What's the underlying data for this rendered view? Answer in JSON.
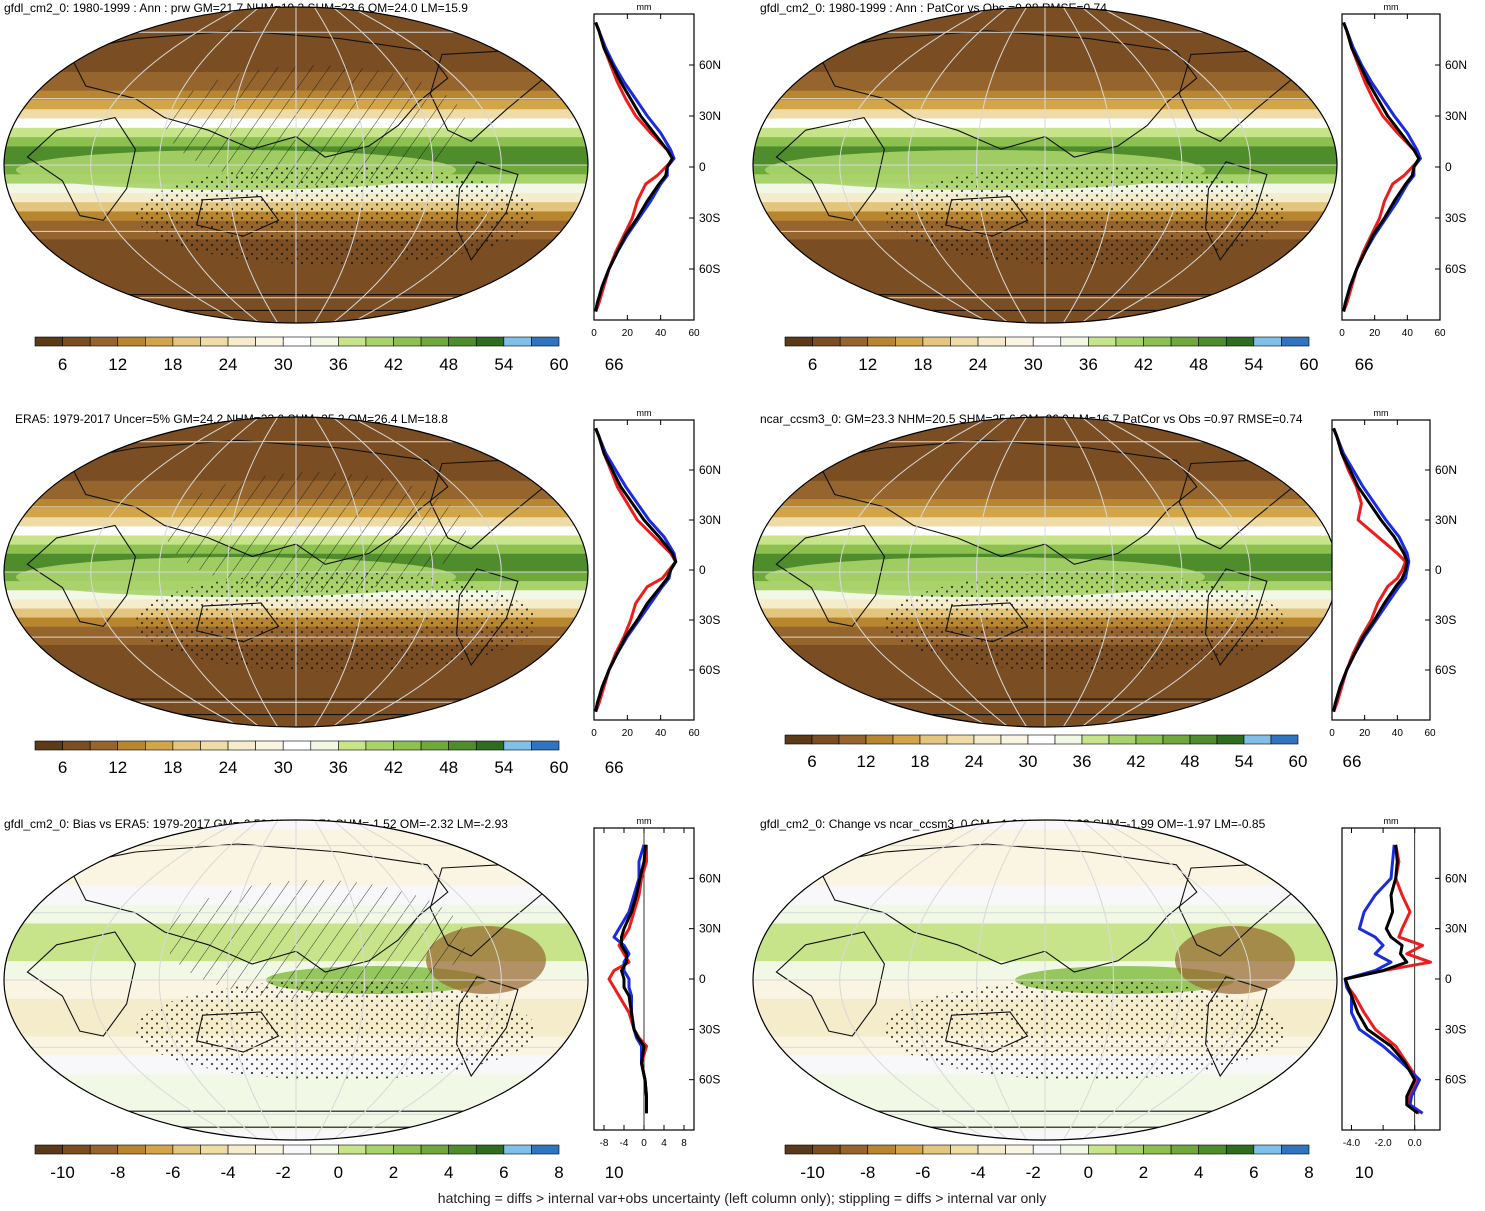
{
  "colors": {
    "mean_scale": [
      "#5c3a17",
      "#7a4e22",
      "#96652d",
      "#b8862f",
      "#d2a648",
      "#e3c57e",
      "#eedba6",
      "#f5eccb",
      "#faf5e2",
      "#ffffff",
      "#f2f8e6",
      "#c8e48a",
      "#a8d36a",
      "#8cc14f",
      "#6fa93c",
      "#4f8c2c",
      "#2e6d1f",
      "#7fbfe8",
      "#2f74c0"
    ],
    "diff_scale": [
      "#5c3a17",
      "#7a4e22",
      "#96652d",
      "#b8862f",
      "#d2a648",
      "#e3c57e",
      "#eedba6",
      "#f5eccb",
      "#faf5e2",
      "#f8f8fb",
      "#f2f8e6",
      "#c8e48a",
      "#a8d36a",
      "#8cc14f",
      "#6fa93c",
      "#4f8c2c",
      "#2e6d1f",
      "#7fbfe8",
      "#2f74c0"
    ],
    "line_red": "#ee1c1c",
    "line_blue": "#1a2be0",
    "line_black": "#000000"
  },
  "panels": [
    {
      "id": "gfdl-mean",
      "title": "gfdl_cm2_0: 1980-1999 : Ann : prw GM=21.7 NHM=19.3 SHM=23.6 OM=24.0 LM=15.9",
      "type": "mean",
      "colorbar_labels": [
        "6",
        "12",
        "18",
        "24",
        "30",
        "36",
        "42",
        "48",
        "54",
        "60",
        "66"
      ],
      "profile": {
        "units": "mm",
        "xlim": [
          0,
          60
        ],
        "xticks": [
          "0",
          "20",
          "40",
          "60"
        ],
        "lat_labels": [
          "60N",
          "30N",
          "0",
          "30S",
          "60S"
        ],
        "lat": [
          -85,
          -80,
          -70,
          -60,
          -50,
          -40,
          -30,
          -20,
          -10,
          -5,
          0,
          5,
          10,
          20,
          30,
          40,
          50,
          60,
          70,
          80,
          85
        ],
        "red": [
          1,
          3,
          6,
          9,
          13,
          18,
          23,
          26,
          31,
          38,
          43,
          48,
          44,
          34,
          25,
          19,
          14,
          10,
          6,
          3,
          1
        ],
        "blue": [
          1,
          2,
          5,
          9,
          14,
          20,
          27,
          34,
          40,
          44,
          44,
          48,
          46,
          40,
          32,
          25,
          18,
          12,
          7,
          3,
          1
        ],
        "black": [
          1,
          2,
          5,
          9,
          14,
          19,
          26,
          32,
          39,
          43,
          44,
          47,
          44,
          36,
          28,
          22,
          16,
          11,
          6,
          3,
          1
        ]
      }
    },
    {
      "id": "gfdl-patcor",
      "title": "gfdl_cm2_0: 1980-1999 : Ann : PatCor vs Obs =0.98 RMSE=0.74",
      "type": "mean",
      "colorbar_labels": [
        "6",
        "12",
        "18",
        "24",
        "30",
        "36",
        "42",
        "48",
        "54",
        "60",
        "66"
      ],
      "profile": {
        "units": "mm",
        "xlim": [
          0,
          60
        ],
        "xticks": [
          "0",
          "20",
          "40",
          "60"
        ],
        "lat_labels": [
          "60N",
          "30N",
          "0",
          "30S",
          "60S"
        ],
        "lat": [
          -85,
          -80,
          -70,
          -60,
          -50,
          -40,
          -30,
          -20,
          -10,
          -5,
          0,
          5,
          10,
          20,
          30,
          40,
          50,
          60,
          70,
          80,
          85
        ],
        "red": [
          1,
          3,
          6,
          9,
          13,
          18,
          23,
          26,
          31,
          38,
          43,
          48,
          44,
          34,
          25,
          19,
          14,
          10,
          6,
          3,
          1
        ],
        "blue": [
          1,
          2,
          5,
          9,
          14,
          20,
          27,
          34,
          40,
          44,
          44,
          48,
          46,
          40,
          32,
          25,
          18,
          12,
          7,
          3,
          1
        ],
        "black": [
          1,
          2,
          5,
          9,
          14,
          19,
          26,
          32,
          39,
          43,
          44,
          47,
          44,
          36,
          28,
          22,
          16,
          11,
          6,
          3,
          1
        ]
      }
    },
    {
      "id": "era5-mean",
      "title": "ERA5: 1979-2017 Uncer=5% GM=24.2 NHM=23.0 SHM=25.2 OM=26.4 LM=18.8",
      "type": "mean",
      "colorbar_labels": [
        "6",
        "12",
        "18",
        "24",
        "30",
        "36",
        "42",
        "48",
        "54",
        "60",
        "66"
      ],
      "profile": {
        "units": "mm",
        "xlim": [
          0,
          60
        ],
        "xticks": [
          "0",
          "20",
          "40",
          "60"
        ],
        "lat_labels": [
          "60N",
          "30N",
          "0",
          "30S",
          "60S"
        ],
        "lat": [
          -85,
          -80,
          -70,
          -60,
          -50,
          -40,
          -30,
          -20,
          -10,
          -5,
          0,
          5,
          10,
          20,
          30,
          40,
          50,
          60,
          70,
          80,
          85
        ],
        "red": [
          1,
          3,
          6,
          9,
          13,
          18,
          22,
          25,
          32,
          41,
          45,
          49,
          46,
          36,
          26,
          20,
          14,
          10,
          6,
          3,
          1
        ],
        "blue": [
          1,
          2,
          5,
          9,
          14,
          20,
          27,
          34,
          41,
          45,
          46,
          49,
          48,
          42,
          33,
          26,
          19,
          13,
          7,
          3,
          1
        ],
        "black": [
          1,
          2,
          5,
          9,
          14,
          19,
          26,
          32,
          40,
          44,
          46,
          49,
          47,
          39,
          30,
          23,
          16,
          11,
          6,
          3,
          1
        ]
      }
    },
    {
      "id": "ncar-mean",
      "title": "ncar_ccsm3_0: GM=23.3 NHM=20.5 SHM=25.6 OM=26.0 LM=16.7 PatCor vs Obs =0.97 RMSE=0.74",
      "type": "mean",
      "colorbar_labels": [
        "6",
        "12",
        "18",
        "24",
        "30",
        "36",
        "42",
        "48",
        "54",
        "60",
        "66"
      ],
      "profile": {
        "units": "mm",
        "xlim": [
          0,
          60
        ],
        "xticks": [
          "0",
          "20",
          "40",
          "60"
        ],
        "lat_labels": [
          "60N",
          "30N",
          "0",
          "30S",
          "60S"
        ],
        "lat": [
          -85,
          -80,
          -70,
          -60,
          -50,
          -40,
          -30,
          -20,
          -10,
          -5,
          0,
          5,
          10,
          20,
          30,
          40,
          50,
          60,
          70,
          80,
          85
        ],
        "red": [
          1,
          3,
          6,
          9,
          13,
          18,
          24,
          28,
          34,
          40,
          43,
          45,
          40,
          28,
          16,
          18,
          15,
          10,
          6,
          3,
          1
        ],
        "blue": [
          1,
          2,
          5,
          9,
          14,
          20,
          27,
          34,
          41,
          45,
          46,
          47,
          46,
          41,
          33,
          26,
          19,
          13,
          7,
          3,
          1
        ],
        "black": [
          1,
          2,
          5,
          9,
          14,
          19,
          26,
          32,
          39,
          43,
          45,
          46,
          44,
          38,
          30,
          23,
          16,
          11,
          6,
          3,
          1
        ]
      }
    },
    {
      "id": "gfdl-bias",
      "title": "gfdl_cm2_0: Bias vs ERA5: 1979-2017 GM=-2.50 NHM=-3.71 SHM=-1.52 OM=-2.32 LM=-2.93",
      "type": "diff",
      "colorbar_labels": [
        "-10",
        "-8",
        "-6",
        "-4",
        "-2",
        "0",
        "2",
        "4",
        "6",
        "8",
        "10"
      ],
      "profile": {
        "units": "mm",
        "xlim": [
          -10,
          10
        ],
        "xticks": [
          "-8",
          "-4",
          "0",
          "4",
          "8"
        ],
        "zero_line": 0,
        "lat_labels": [
          "60N",
          "30N",
          "0",
          "30S",
          "60S"
        ],
        "lat": [
          -80,
          -70,
          -60,
          -50,
          -40,
          -35,
          -30,
          -20,
          -10,
          -5,
          0,
          5,
          10,
          15,
          20,
          25,
          30,
          40,
          50,
          60,
          70,
          80
        ],
        "red": [
          0.5,
          0.5,
          0.2,
          -0.5,
          0.5,
          -1,
          -2,
          -3,
          -5,
          -6,
          -7,
          -6,
          -3,
          -4,
          -5,
          -4,
          -3,
          -2,
          -1,
          -0.5,
          0.5,
          0.5
        ],
        "blue": [
          0.5,
          0.5,
          0.2,
          -0.5,
          -0.5,
          -1.5,
          -2,
          -2.5,
          -2.5,
          -3,
          -3,
          -4,
          -4,
          -3,
          -4,
          -6,
          -5,
          -3,
          -2,
          -1,
          -1,
          0
        ],
        "black": [
          0.5,
          0.5,
          0.2,
          -0.5,
          0,
          -1.2,
          -2,
          -2.5,
          -3,
          -4,
          -4,
          -4.5,
          -3.5,
          -3.5,
          -4.5,
          -4.5,
          -4,
          -2.5,
          -1.5,
          -0.8,
          0,
          0.3
        ]
      }
    },
    {
      "id": "gfdl-change",
      "title": "gfdl_cm2_0: Change vs ncar_ccsm3_0 GM=-1.64 NHM=-1.22 SHM=-1.99 OM=-1.97 LM=-0.85",
      "type": "diff",
      "colorbar_labels": [
        "-10",
        "-8",
        "-6",
        "-4",
        "-2",
        "0",
        "2",
        "4",
        "6",
        "8",
        "10"
      ],
      "profile": {
        "units": "mm",
        "xlim": [
          -4.6,
          1.6
        ],
        "xticks": [
          "-4.0",
          "-2.0",
          "0.0"
        ],
        "zero_line": 0,
        "lat_labels": [
          "60N",
          "30N",
          "0",
          "30S",
          "60S"
        ],
        "lat": [
          -80,
          -75,
          -70,
          -60,
          -50,
          -40,
          -30,
          -20,
          -10,
          -5,
          0,
          5,
          10,
          15,
          20,
          25,
          30,
          40,
          50,
          60,
          70,
          80
        ],
        "red": [
          0.3,
          -0.5,
          -0.3,
          0.2,
          -0.5,
          -1.2,
          -2.5,
          -3.2,
          -3.8,
          -4.2,
          -4.4,
          -2,
          1,
          -0.5,
          0.5,
          -1,
          -0.8,
          -0.3,
          -0.8,
          -1.2,
          -1.0,
          -1.2
        ],
        "blue": [
          0.5,
          -0.3,
          -0.2,
          0.3,
          -0.8,
          -2.0,
          -3.5,
          -4.0,
          -4.0,
          -4.3,
          -4.4,
          -2.5,
          -1.5,
          -2.5,
          -2,
          -2.5,
          -3.5,
          -3.2,
          -2.5,
          -1.5,
          -1.4,
          -1.3
        ],
        "black": [
          0.2,
          -0.5,
          -0.5,
          0,
          -0.6,
          -1.5,
          -3.0,
          -3.6,
          -4.0,
          -4.2,
          -4.4,
          -2,
          -0.5,
          -0.9,
          -0.8,
          -1.5,
          -1.8,
          -1.4,
          -1.5,
          -1.2,
          -1.1,
          -1.2
        ]
      }
    }
  ],
  "footer": "hatching = diffs > internal var+obs uncertainty (left column only); stippling = diffs > internal var only"
}
